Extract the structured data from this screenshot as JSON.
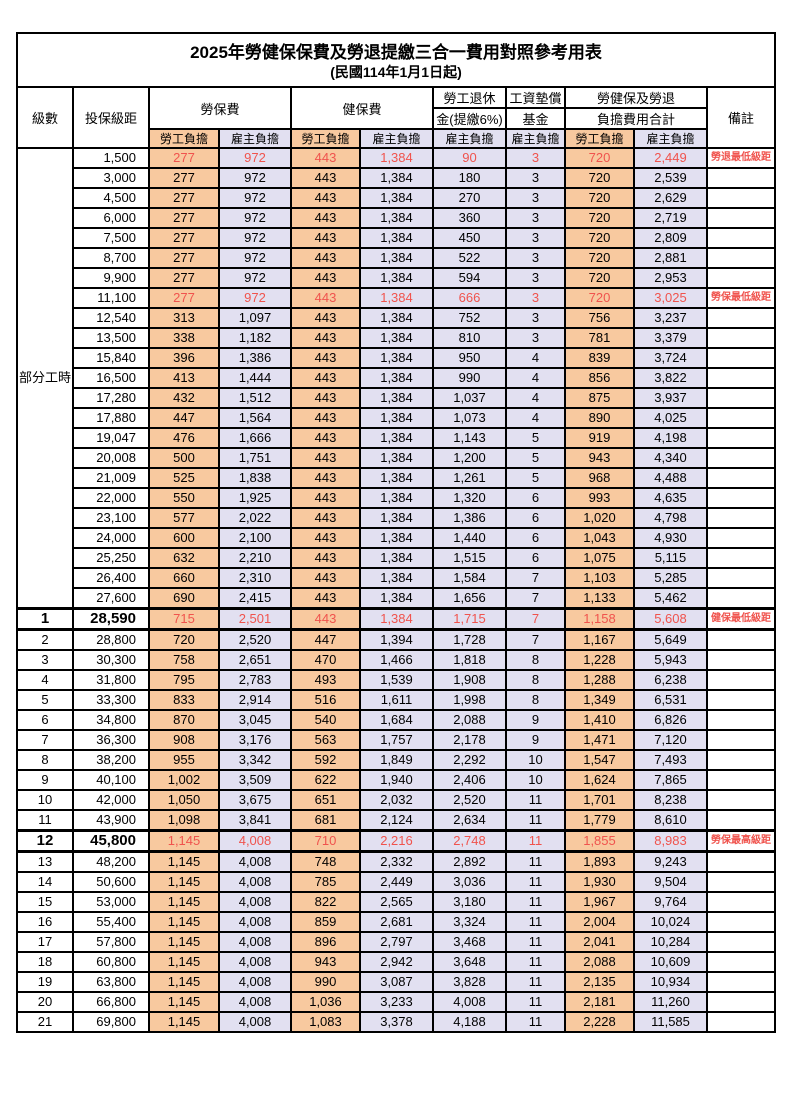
{
  "title": "2025年勞健保保費及勞退提繳三合一費用對照參考用表",
  "subtitle": "(民國114年1月1日起)",
  "header": {
    "level": "級數",
    "bracket": "投保級距",
    "labor_ins": "勞保費",
    "health_ins": "健保費",
    "pension_line1": "勞工退休",
    "pension_line2": "金(提繳6%)",
    "wage_fund_line1": "工資墊償",
    "wage_fund_line2": "基金",
    "total_line1": "勞健保及勞退",
    "total_line2": "負擔費用合計",
    "remark": "備註",
    "employee": "勞工負擔",
    "employer": "雇主負擔"
  },
  "part_time_label": "部分工時",
  "colors": {
    "employee_fill": "#F8C99F",
    "employer_fill": "#E2E0F1",
    "highlight_red": "#F0534D",
    "border": "#000000"
  },
  "rows": [
    {
      "level": "",
      "bracket": "1,500",
      "v": [
        "277",
        "972",
        "443",
        "1,384",
        "90",
        "3",
        "720",
        "2,449"
      ],
      "remark": "勞退最低級距",
      "red": true,
      "bold": false
    },
    {
      "level": "",
      "bracket": "3,000",
      "v": [
        "277",
        "972",
        "443",
        "1,384",
        "180",
        "3",
        "720",
        "2,539"
      ],
      "remark": "",
      "red": false,
      "bold": false
    },
    {
      "level": "",
      "bracket": "4,500",
      "v": [
        "277",
        "972",
        "443",
        "1,384",
        "270",
        "3",
        "720",
        "2,629"
      ],
      "remark": "",
      "red": false,
      "bold": false
    },
    {
      "level": "",
      "bracket": "6,000",
      "v": [
        "277",
        "972",
        "443",
        "1,384",
        "360",
        "3",
        "720",
        "2,719"
      ],
      "remark": "",
      "red": false,
      "bold": false
    },
    {
      "level": "",
      "bracket": "7,500",
      "v": [
        "277",
        "972",
        "443",
        "1,384",
        "450",
        "3",
        "720",
        "2,809"
      ],
      "remark": "",
      "red": false,
      "bold": false
    },
    {
      "level": "",
      "bracket": "8,700",
      "v": [
        "277",
        "972",
        "443",
        "1,384",
        "522",
        "3",
        "720",
        "2,881"
      ],
      "remark": "",
      "red": false,
      "bold": false
    },
    {
      "level": "",
      "bracket": "9,900",
      "v": [
        "277",
        "972",
        "443",
        "1,384",
        "594",
        "3",
        "720",
        "2,953"
      ],
      "remark": "",
      "red": false,
      "bold": false
    },
    {
      "level": "",
      "bracket": "11,100",
      "v": [
        "277",
        "972",
        "443",
        "1,384",
        "666",
        "3",
        "720",
        "3,025"
      ],
      "remark": "勞保最低級距",
      "red": true,
      "bold": false
    },
    {
      "level": "",
      "bracket": "12,540",
      "v": [
        "313",
        "1,097",
        "443",
        "1,384",
        "752",
        "3",
        "756",
        "3,237"
      ],
      "remark": "",
      "red": false,
      "bold": false
    },
    {
      "level": "",
      "bracket": "13,500",
      "v": [
        "338",
        "1,182",
        "443",
        "1,384",
        "810",
        "3",
        "781",
        "3,379"
      ],
      "remark": "",
      "red": false,
      "bold": false
    },
    {
      "level": "",
      "bracket": "15,840",
      "v": [
        "396",
        "1,386",
        "443",
        "1,384",
        "950",
        "4",
        "839",
        "3,724"
      ],
      "remark": "",
      "red": false,
      "bold": false
    },
    {
      "level": "",
      "bracket": "16,500",
      "v": [
        "413",
        "1,444",
        "443",
        "1,384",
        "990",
        "4",
        "856",
        "3,822"
      ],
      "remark": "",
      "red": false,
      "bold": false
    },
    {
      "level": "",
      "bracket": "17,280",
      "v": [
        "432",
        "1,512",
        "443",
        "1,384",
        "1,037",
        "4",
        "875",
        "3,937"
      ],
      "remark": "",
      "red": false,
      "bold": false
    },
    {
      "level": "",
      "bracket": "17,880",
      "v": [
        "447",
        "1,564",
        "443",
        "1,384",
        "1,073",
        "4",
        "890",
        "4,025"
      ],
      "remark": "",
      "red": false,
      "bold": false
    },
    {
      "level": "",
      "bracket": "19,047",
      "v": [
        "476",
        "1,666",
        "443",
        "1,384",
        "1,143",
        "5",
        "919",
        "4,198"
      ],
      "remark": "",
      "red": false,
      "bold": false
    },
    {
      "level": "",
      "bracket": "20,008",
      "v": [
        "500",
        "1,751",
        "443",
        "1,384",
        "1,200",
        "5",
        "943",
        "4,340"
      ],
      "remark": "",
      "red": false,
      "bold": false
    },
    {
      "level": "",
      "bracket": "21,009",
      "v": [
        "525",
        "1,838",
        "443",
        "1,384",
        "1,261",
        "5",
        "968",
        "4,488"
      ],
      "remark": "",
      "red": false,
      "bold": false
    },
    {
      "level": "",
      "bracket": "22,000",
      "v": [
        "550",
        "1,925",
        "443",
        "1,384",
        "1,320",
        "6",
        "993",
        "4,635"
      ],
      "remark": "",
      "red": false,
      "bold": false
    },
    {
      "level": "",
      "bracket": "23,100",
      "v": [
        "577",
        "2,022",
        "443",
        "1,384",
        "1,386",
        "6",
        "1,020",
        "4,798"
      ],
      "remark": "",
      "red": false,
      "bold": false
    },
    {
      "level": "",
      "bracket": "24,000",
      "v": [
        "600",
        "2,100",
        "443",
        "1,384",
        "1,440",
        "6",
        "1,043",
        "4,930"
      ],
      "remark": "",
      "red": false,
      "bold": false
    },
    {
      "level": "",
      "bracket": "25,250",
      "v": [
        "632",
        "2,210",
        "443",
        "1,384",
        "1,515",
        "6",
        "1,075",
        "5,115"
      ],
      "remark": "",
      "red": false,
      "bold": false
    },
    {
      "level": "",
      "bracket": "26,400",
      "v": [
        "660",
        "2,310",
        "443",
        "1,384",
        "1,584",
        "7",
        "1,103",
        "5,285"
      ],
      "remark": "",
      "red": false,
      "bold": false
    },
    {
      "level": "",
      "bracket": "27,600",
      "v": [
        "690",
        "2,415",
        "443",
        "1,384",
        "1,656",
        "7",
        "1,133",
        "5,462"
      ],
      "remark": "",
      "red": false,
      "bold": false
    },
    {
      "level": "1",
      "bracket": "28,590",
      "v": [
        "715",
        "2,501",
        "443",
        "1,384",
        "1,715",
        "7",
        "1,158",
        "5,608"
      ],
      "remark": "健保最低級距",
      "red": true,
      "bold": true
    },
    {
      "level": "2",
      "bracket": "28,800",
      "v": [
        "720",
        "2,520",
        "447",
        "1,394",
        "1,728",
        "7",
        "1,167",
        "5,649"
      ],
      "remark": "",
      "red": false,
      "bold": false
    },
    {
      "level": "3",
      "bracket": "30,300",
      "v": [
        "758",
        "2,651",
        "470",
        "1,466",
        "1,818",
        "8",
        "1,228",
        "5,943"
      ],
      "remark": "",
      "red": false,
      "bold": false
    },
    {
      "level": "4",
      "bracket": "31,800",
      "v": [
        "795",
        "2,783",
        "493",
        "1,539",
        "1,908",
        "8",
        "1,288",
        "6,238"
      ],
      "remark": "",
      "red": false,
      "bold": false
    },
    {
      "level": "5",
      "bracket": "33,300",
      "v": [
        "833",
        "2,914",
        "516",
        "1,611",
        "1,998",
        "8",
        "1,349",
        "6,531"
      ],
      "remark": "",
      "red": false,
      "bold": false
    },
    {
      "level": "6",
      "bracket": "34,800",
      "v": [
        "870",
        "3,045",
        "540",
        "1,684",
        "2,088",
        "9",
        "1,410",
        "6,826"
      ],
      "remark": "",
      "red": false,
      "bold": false
    },
    {
      "level": "7",
      "bracket": "36,300",
      "v": [
        "908",
        "3,176",
        "563",
        "1,757",
        "2,178",
        "9",
        "1,471",
        "7,120"
      ],
      "remark": "",
      "red": false,
      "bold": false
    },
    {
      "level": "8",
      "bracket": "38,200",
      "v": [
        "955",
        "3,342",
        "592",
        "1,849",
        "2,292",
        "10",
        "1,547",
        "7,493"
      ],
      "remark": "",
      "red": false,
      "bold": false
    },
    {
      "level": "9",
      "bracket": "40,100",
      "v": [
        "1,002",
        "3,509",
        "622",
        "1,940",
        "2,406",
        "10",
        "1,624",
        "7,865"
      ],
      "remark": "",
      "red": false,
      "bold": false
    },
    {
      "level": "10",
      "bracket": "42,000",
      "v": [
        "1,050",
        "3,675",
        "651",
        "2,032",
        "2,520",
        "11",
        "1,701",
        "8,238"
      ],
      "remark": "",
      "red": false,
      "bold": false
    },
    {
      "level": "11",
      "bracket": "43,900",
      "v": [
        "1,098",
        "3,841",
        "681",
        "2,124",
        "2,634",
        "11",
        "1,779",
        "8,610"
      ],
      "remark": "",
      "red": false,
      "bold": false
    },
    {
      "level": "12",
      "bracket": "45,800",
      "v": [
        "1,145",
        "4,008",
        "710",
        "2,216",
        "2,748",
        "11",
        "1,855",
        "8,983"
      ],
      "remark": "勞保最高級距",
      "red": true,
      "bold": true
    },
    {
      "level": "13",
      "bracket": "48,200",
      "v": [
        "1,145",
        "4,008",
        "748",
        "2,332",
        "2,892",
        "11",
        "1,893",
        "9,243"
      ],
      "remark": "",
      "red": false,
      "bold": false
    },
    {
      "level": "14",
      "bracket": "50,600",
      "v": [
        "1,145",
        "4,008",
        "785",
        "2,449",
        "3,036",
        "11",
        "1,930",
        "9,504"
      ],
      "remark": "",
      "red": false,
      "bold": false
    },
    {
      "level": "15",
      "bracket": "53,000",
      "v": [
        "1,145",
        "4,008",
        "822",
        "2,565",
        "3,180",
        "11",
        "1,967",
        "9,764"
      ],
      "remark": "",
      "red": false,
      "bold": false
    },
    {
      "level": "16",
      "bracket": "55,400",
      "v": [
        "1,145",
        "4,008",
        "859",
        "2,681",
        "3,324",
        "11",
        "2,004",
        "10,024"
      ],
      "remark": "",
      "red": false,
      "bold": false
    },
    {
      "level": "17",
      "bracket": "57,800",
      "v": [
        "1,145",
        "4,008",
        "896",
        "2,797",
        "3,468",
        "11",
        "2,041",
        "10,284"
      ],
      "remark": "",
      "red": false,
      "bold": false
    },
    {
      "level": "18",
      "bracket": "60,800",
      "v": [
        "1,145",
        "4,008",
        "943",
        "2,942",
        "3,648",
        "11",
        "2,088",
        "10,609"
      ],
      "remark": "",
      "red": false,
      "bold": false
    },
    {
      "level": "19",
      "bracket": "63,800",
      "v": [
        "1,145",
        "4,008",
        "990",
        "3,087",
        "3,828",
        "11",
        "2,135",
        "10,934"
      ],
      "remark": "",
      "red": false,
      "bold": false
    },
    {
      "level": "20",
      "bracket": "66,800",
      "v": [
        "1,145",
        "4,008",
        "1,036",
        "3,233",
        "4,008",
        "11",
        "2,181",
        "11,260"
      ],
      "remark": "",
      "red": false,
      "bold": false
    },
    {
      "level": "21",
      "bracket": "69,800",
      "v": [
        "1,145",
        "4,008",
        "1,083",
        "3,378",
        "4,188",
        "11",
        "2,228",
        "11,585"
      ],
      "remark": "",
      "red": false,
      "bold": false
    }
  ]
}
